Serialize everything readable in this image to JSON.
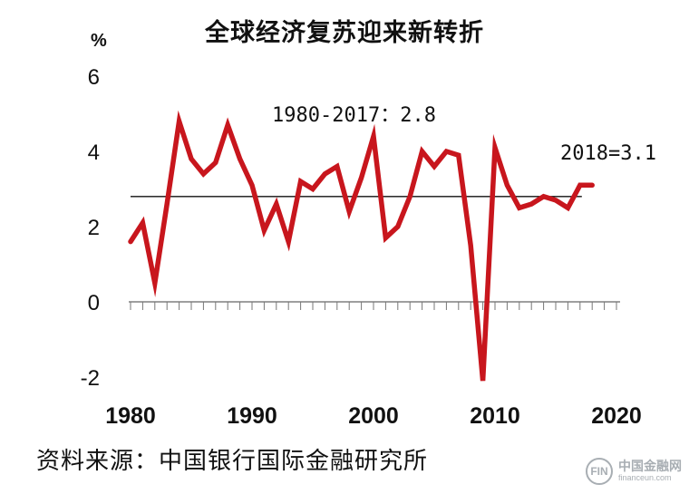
{
  "chart_data": {
    "type": "line",
    "title": "全球经济复苏迎来新转折",
    "ylabel": "%",
    "xlabel": "",
    "ylim": [
      -2,
      6
    ],
    "xlim": [
      1980,
      2020
    ],
    "yticks": [
      -2,
      0,
      2,
      4,
      6
    ],
    "xticks": [
      1980,
      1990,
      2000,
      2010,
      2020
    ],
    "x": [
      1980,
      1981,
      1982,
      1983,
      1984,
      1985,
      1986,
      1987,
      1988,
      1989,
      1990,
      1991,
      1992,
      1993,
      1994,
      1995,
      1996,
      1997,
      1998,
      1999,
      2000,
      2001,
      2002,
      2003,
      2004,
      2005,
      2006,
      2007,
      2008,
      2009,
      2010,
      2011,
      2012,
      2013,
      2014,
      2015,
      2016,
      2017,
      2018
    ],
    "series": [
      {
        "color": "#c8161d",
        "values": [
          1.6,
          2.1,
          0.5,
          2.6,
          4.8,
          3.8,
          3.4,
          3.7,
          4.7,
          3.8,
          3.1,
          1.9,
          2.6,
          1.6,
          3.2,
          3.0,
          3.4,
          3.6,
          2.4,
          3.3,
          4.4,
          1.7,
          2.0,
          2.8,
          4.0,
          3.6,
          4.0,
          3.9,
          1.5,
          -2.1,
          4.1,
          3.1,
          2.5,
          2.6,
          2.8,
          2.7,
          2.5,
          3.1,
          3.1
        ]
      }
    ],
    "reference_line": {
      "value": 2.8,
      "color": "#111111",
      "label": "1980-2017：2.8"
    },
    "annotation_last": "2018=3.1",
    "grid": false
  },
  "source": "资料来源：中国银行国际金融研究所",
  "watermark": {
    "cn": "中国金融网",
    "en": "financeun.com",
    "logo": "FIN"
  }
}
